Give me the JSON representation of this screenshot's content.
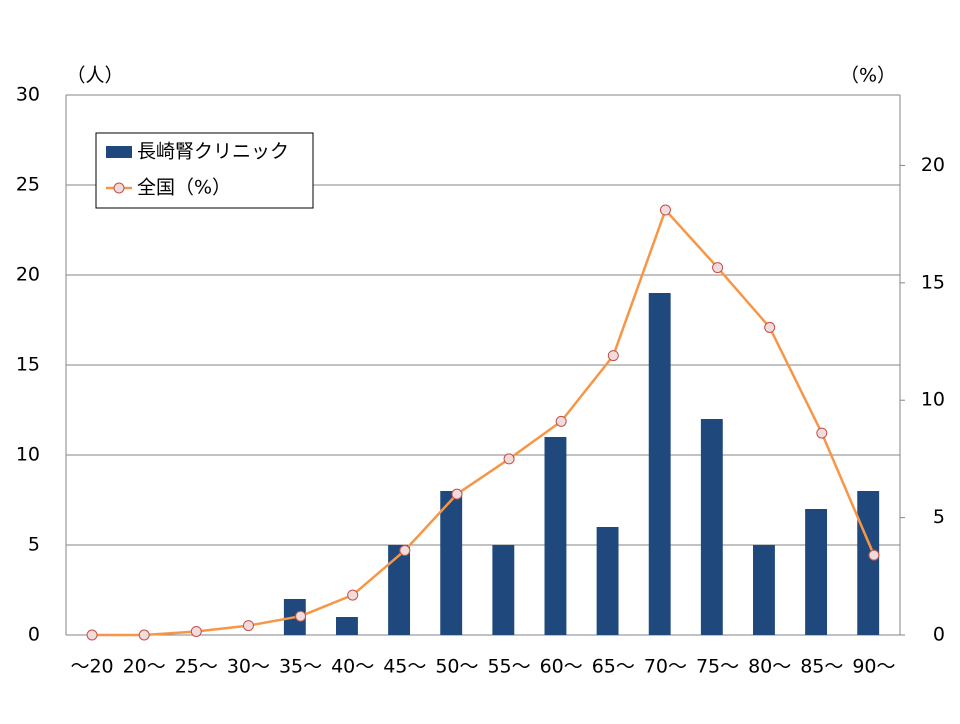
{
  "chart_data": {
    "type": "bar-line",
    "y_axis_label": "（人）",
    "y2_axis_label": "（%）",
    "categories": [
      "～20",
      "20～",
      "25～",
      "30～",
      "35～",
      "40～",
      "45～",
      "50～",
      "55～",
      "60～",
      "65～",
      "70～",
      "75～",
      "80～",
      "85～",
      "90～"
    ],
    "series": [
      {
        "name": "長崎腎クリニック",
        "type": "bar",
        "color": "#1f497d",
        "values": [
          0,
          0,
          0,
          0,
          2,
          1,
          5,
          8,
          5,
          11,
          6,
          19,
          12,
          5,
          7,
          8
        ]
      },
      {
        "name": "全国（%）",
        "type": "line",
        "axis": "y2",
        "color": "#f79646",
        "values": [
          0.0,
          0.0,
          0.15,
          0.4,
          0.8,
          1.7,
          3.6,
          6.0,
          7.5,
          9.1,
          11.9,
          18.1,
          15.65,
          13.1,
          8.6,
          3.4
        ]
      }
    ],
    "ylim": [
      0,
      30
    ],
    "yticks": [
      0,
      5,
      10,
      15,
      20,
      25,
      30
    ],
    "y2lim": [
      0,
      23
    ],
    "y2ticks": [
      0,
      5,
      10,
      15,
      20
    ],
    "grid": true,
    "legend": "top-left"
  }
}
